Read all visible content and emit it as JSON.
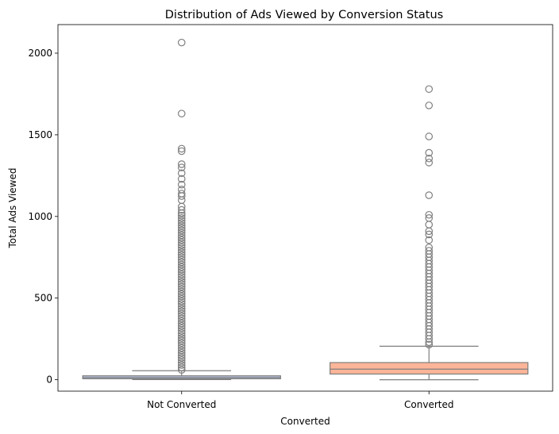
{
  "chart_data": {
    "type": "box",
    "title": "Distribution of Ads Viewed by Conversion Status",
    "xlabel": "Converted",
    "ylabel": "Total Ads Viewed",
    "ylim": [
      -70,
      2175
    ],
    "yticks": [
      0,
      500,
      1000,
      1500,
      2000
    ],
    "grid": false,
    "legend": "none",
    "categories": [
      "Not Converted",
      "Converted"
    ],
    "series": [
      {
        "category": "Not Converted",
        "color": "#8da0cb",
        "whisker_low": 1,
        "q1": 6,
        "median": 13,
        "q3": 24,
        "whisker_high": 55,
        "outliers": [
          2065,
          1630,
          1415,
          1400,
          1320,
          1300,
          1265,
          1230,
          1195,
          1165,
          1140,
          1125,
          1100,
          1060,
          1040,
          1020,
          1005,
          990,
          975,
          960,
          945,
          930,
          915,
          900,
          885,
          870,
          855,
          840,
          825,
          810,
          795,
          780,
          765,
          750,
          735,
          720,
          705,
          690,
          675,
          660,
          645,
          630,
          615,
          600,
          585,
          570,
          555,
          540,
          525,
          510,
          495,
          480,
          465,
          450,
          435,
          420,
          405,
          390,
          375,
          360,
          345,
          330,
          315,
          300,
          285,
          270,
          255,
          240,
          225,
          210,
          195,
          180,
          165,
          150,
          135,
          120,
          105,
          90,
          75,
          60
        ]
      },
      {
        "category": "Converted",
        "color": "#fc8d62",
        "whisker_low": 0,
        "q1": 35,
        "median": 65,
        "q3": 105,
        "whisker_high": 205,
        "outliers": [
          1780,
          1680,
          1490,
          1390,
          1355,
          1330,
          1130,
          1010,
          990,
          950,
          910,
          890,
          855,
          810,
          790,
          770,
          750,
          730,
          710,
          690,
          670,
          650,
          630,
          610,
          590,
          570,
          550,
          530,
          510,
          490,
          470,
          450,
          430,
          410,
          390,
          370,
          350,
          330,
          310,
          290,
          270,
          250,
          230,
          215
        ]
      }
    ]
  }
}
